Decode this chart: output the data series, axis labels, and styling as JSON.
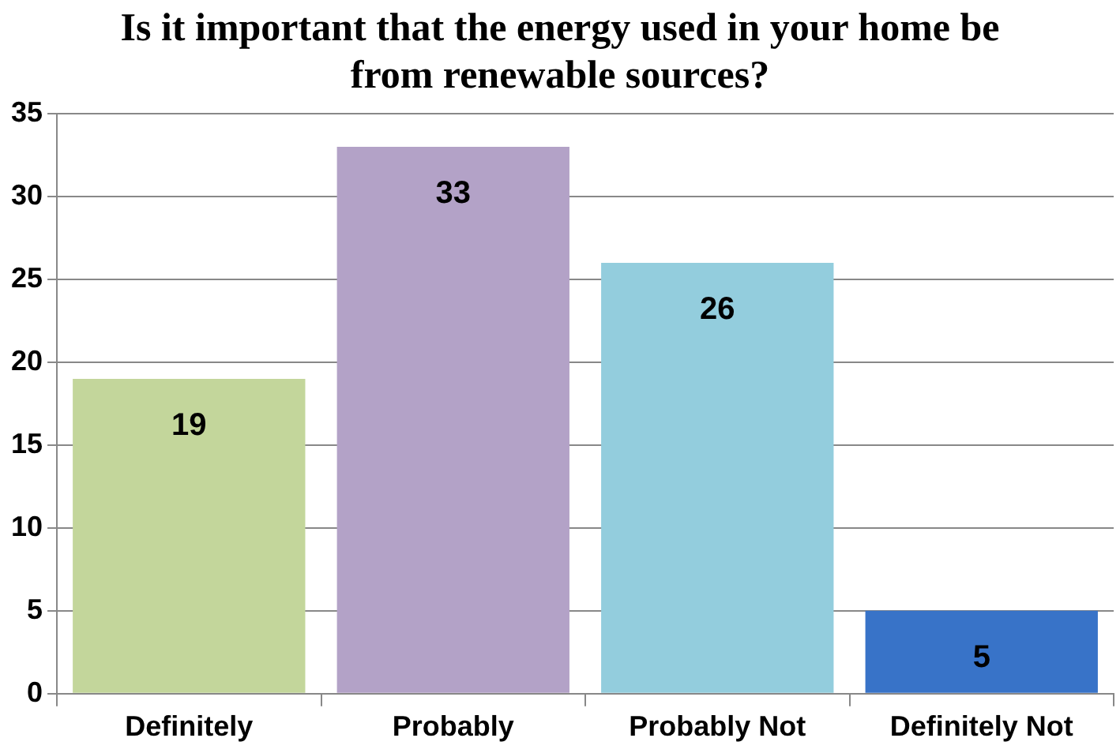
{
  "chart_data": {
    "type": "bar",
    "title": "Is it important that the energy used in your home be from renewable sources?",
    "categories": [
      "Definitely",
      "Probably",
      "Probably Not",
      "Definitely Not"
    ],
    "values": [
      19,
      33,
      26,
      5
    ],
    "colors": [
      "#c3d69b",
      "#b3a2c7",
      "#93cddd",
      "#3873c8"
    ],
    "ylim": [
      0,
      35
    ],
    "yticks": [
      0,
      5,
      10,
      15,
      20,
      25,
      30,
      35
    ],
    "grid": "y",
    "data_labels": true
  }
}
